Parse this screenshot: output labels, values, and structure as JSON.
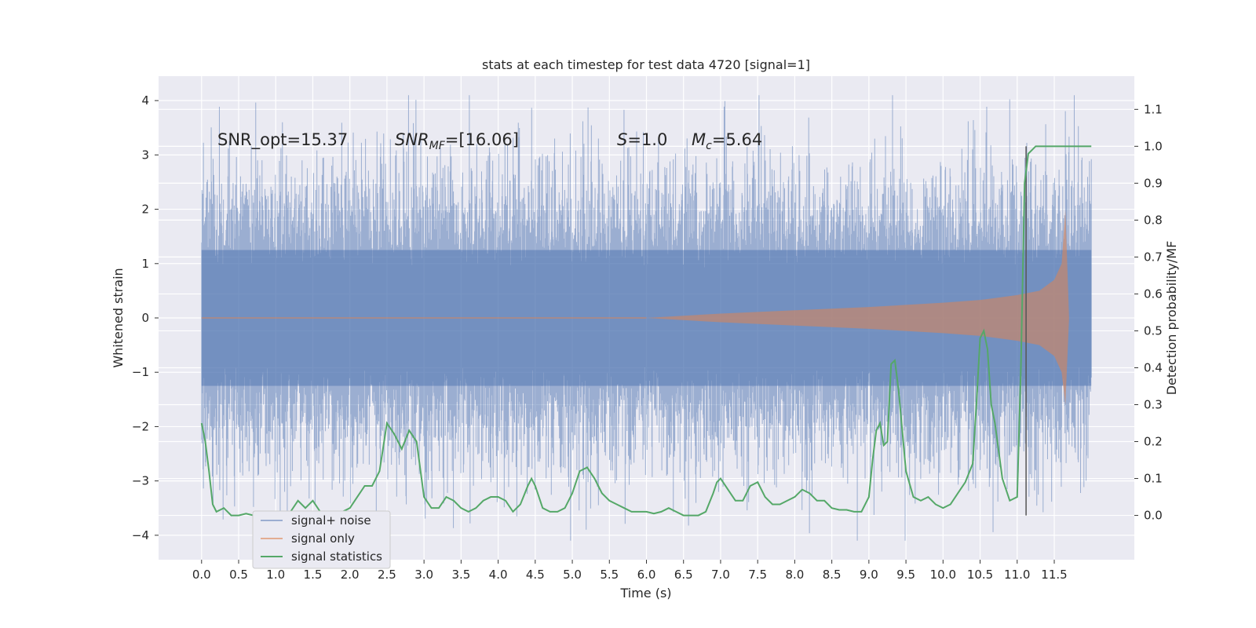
{
  "chart_data": {
    "type": "line",
    "title": "stats at each timestep for test data 4720 [signal=1]",
    "xlabel": "Time (s)",
    "ylabel": "Whitened strain",
    "y2label": "Detection probability/MF",
    "xlim": [
      -0.58,
      12.58
    ],
    "ylim": [
      -4.45,
      4.45
    ],
    "y2lim": [
      -0.12,
      1.19
    ],
    "x_ticks": [
      0.0,
      0.5,
      1.0,
      1.5,
      2.0,
      2.5,
      3.0,
      3.5,
      4.0,
      4.5,
      5.0,
      5.5,
      6.0,
      6.5,
      7.0,
      7.5,
      8.0,
      8.5,
      9.0,
      9.5,
      10.0,
      10.5,
      11.0,
      11.5
    ],
    "x_tick_labels": [
      "0.0",
      "0.5",
      "1.0",
      "1.5",
      "2.0",
      "2.5",
      "3.0",
      "3.5",
      "4.0",
      "4.5",
      "5.0",
      "5.5",
      "6.0",
      "6.5",
      "7.0",
      "7.5",
      "8.0",
      "8.5",
      "9.0",
      "9.5",
      "10.0",
      "10.5",
      "11.0",
      "11.5"
    ],
    "y_ticks": [
      -4,
      -3,
      -2,
      -1,
      0,
      1,
      2,
      3,
      4
    ],
    "y_tick_labels": [
      "−4",
      "−3",
      "−2",
      "−1",
      "0",
      "1",
      "2",
      "3",
      "4"
    ],
    "y2_ticks": [
      0.0,
      0.1,
      0.2,
      0.3,
      0.4,
      0.5,
      0.6,
      0.7,
      0.8,
      0.9,
      1.0,
      1.1
    ],
    "y2_tick_labels": [
      "0.0",
      "0.1",
      "0.2",
      "0.3",
      "0.4",
      "0.5",
      "0.6",
      "0.7",
      "0.8",
      "0.9",
      "1.0",
      "1.1"
    ],
    "grid": true,
    "legend_position": "bottom-left",
    "colors": {
      "noise": "#4c72b0",
      "signal": "#dd8452",
      "stat": "#55a868",
      "vline": "#555555",
      "background": "#eaeaf2"
    },
    "annotations": [
      {
        "text": "SNR_opt=15.37"
      },
      {
        "main": "SNR",
        "sub": "MF",
        "rest": "=[16.06]"
      },
      {
        "main": "S",
        "rest": "=1.0"
      },
      {
        "main": "M",
        "sub": "c",
        "rest": "=5.64"
      }
    ],
    "series": [
      {
        "name": "signal+ noise",
        "axis": "left",
        "x_range": [
          0.0,
          12.0
        ],
        "noise_band": [
          -1.25,
          1.25
        ],
        "spike_range": [
          -4.1,
          4.1
        ]
      },
      {
        "name": "signal only",
        "axis": "left",
        "envelope_x": [
          6.0,
          7.0,
          8.0,
          9.0,
          10.0,
          10.5,
          11.0,
          11.3,
          11.5,
          11.6,
          11.65,
          11.7
        ],
        "envelope_amplitude": [
          0.0,
          0.08,
          0.14,
          0.2,
          0.28,
          0.33,
          0.42,
          0.5,
          0.7,
          1.0,
          2.0,
          0.0
        ]
      },
      {
        "name": "signal statistics",
        "axis": "right",
        "x": [
          0.0,
          0.05,
          0.1,
          0.15,
          0.2,
          0.3,
          0.4,
          0.5,
          0.6,
          0.7,
          0.8,
          0.9,
          1.0,
          1.1,
          1.2,
          1.3,
          1.4,
          1.5,
          1.6,
          1.7,
          1.8,
          1.9,
          2.0,
          2.1,
          2.2,
          2.3,
          2.4,
          2.5,
          2.6,
          2.7,
          2.8,
          2.9,
          3.0,
          3.1,
          3.2,
          3.3,
          3.4,
          3.5,
          3.6,
          3.7,
          3.8,
          3.9,
          4.0,
          4.1,
          4.2,
          4.3,
          4.4,
          4.45,
          4.5,
          4.6,
          4.7,
          4.8,
          4.9,
          5.0,
          5.1,
          5.2,
          5.3,
          5.4,
          5.5,
          5.6,
          5.7,
          5.8,
          5.9,
          6.0,
          6.1,
          6.2,
          6.3,
          6.4,
          6.5,
          6.6,
          6.7,
          6.8,
          6.9,
          6.95,
          7.0,
          7.1,
          7.2,
          7.3,
          7.4,
          7.5,
          7.6,
          7.7,
          7.8,
          7.9,
          8.0,
          8.1,
          8.2,
          8.3,
          8.4,
          8.5,
          8.6,
          8.7,
          8.8,
          8.9,
          9.0,
          9.05,
          9.1,
          9.15,
          9.2,
          9.25,
          9.3,
          9.35,
          9.4,
          9.5,
          9.6,
          9.7,
          9.8,
          9.9,
          10.0,
          10.1,
          10.2,
          10.3,
          10.4,
          10.45,
          10.5,
          10.55,
          10.6,
          10.65,
          10.7,
          10.8,
          10.9,
          11.0,
          11.05,
          11.1,
          11.15,
          11.2,
          11.25,
          11.3,
          11.4,
          11.5,
          11.6,
          11.7,
          11.8,
          11.9,
          12.0
        ],
        "y": [
          0.25,
          0.2,
          0.12,
          0.03,
          0.01,
          0.02,
          0.0,
          0.0,
          0.005,
          0.0,
          0.005,
          0.01,
          0.005,
          0.0,
          0.01,
          0.04,
          0.02,
          0.04,
          0.01,
          0.0,
          0.01,
          0.01,
          0.02,
          0.05,
          0.08,
          0.08,
          0.12,
          0.25,
          0.22,
          0.18,
          0.23,
          0.2,
          0.05,
          0.02,
          0.02,
          0.05,
          0.04,
          0.02,
          0.01,
          0.02,
          0.04,
          0.05,
          0.05,
          0.04,
          0.01,
          0.03,
          0.08,
          0.1,
          0.08,
          0.02,
          0.01,
          0.01,
          0.02,
          0.06,
          0.12,
          0.13,
          0.1,
          0.06,
          0.04,
          0.03,
          0.02,
          0.01,
          0.01,
          0.01,
          0.005,
          0.01,
          0.02,
          0.01,
          0.0,
          0.0,
          0.0,
          0.01,
          0.06,
          0.09,
          0.1,
          0.07,
          0.04,
          0.04,
          0.08,
          0.09,
          0.05,
          0.03,
          0.03,
          0.04,
          0.05,
          0.07,
          0.06,
          0.04,
          0.04,
          0.02,
          0.015,
          0.015,
          0.01,
          0.01,
          0.05,
          0.15,
          0.23,
          0.25,
          0.19,
          0.2,
          0.41,
          0.42,
          0.34,
          0.12,
          0.05,
          0.04,
          0.05,
          0.03,
          0.02,
          0.03,
          0.06,
          0.09,
          0.14,
          0.3,
          0.48,
          0.5,
          0.45,
          0.3,
          0.25,
          0.1,
          0.04,
          0.05,
          0.4,
          0.9,
          0.98,
          0.99,
          1.0,
          1.0,
          1.0,
          1.0,
          1.0,
          1.0,
          1.0,
          1.0,
          1.0
        ]
      }
    ],
    "vertical_line": {
      "x": 11.12,
      "y_from": 0.0,
      "y_to": 1.0,
      "axis": "right"
    }
  }
}
